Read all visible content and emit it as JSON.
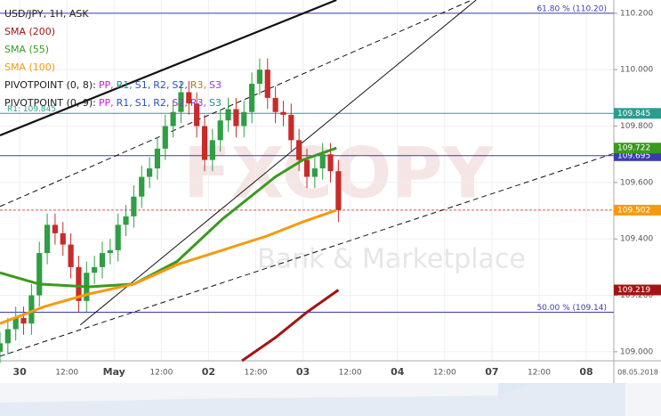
{
  "chart_data": {
    "type": "candlestick",
    "title": "USD/JPY, 1H, ASK",
    "watermark": [
      "FXCOPY",
      "Bank & Marketplace"
    ],
    "date_label": "08.05.2018",
    "xlim": [
      0,
      156
    ],
    "xticks": [
      {
        "value": 5,
        "label": "30"
      },
      {
        "value": 17,
        "label": "12:00"
      },
      {
        "value": 29,
        "label": "May"
      },
      {
        "value": 41,
        "label": "12:00"
      },
      {
        "value": 53,
        "label": "02"
      },
      {
        "value": 65,
        "label": "12:00"
      },
      {
        "value": 77,
        "label": "03"
      },
      {
        "value": 89,
        "label": "12:00"
      },
      {
        "value": 101,
        "label": "04"
      },
      {
        "value": 113,
        "label": "12:00"
      },
      {
        "value": 125,
        "label": "07"
      },
      {
        "value": 137,
        "label": "12:00"
      },
      {
        "value": 149,
        "label": "08"
      }
    ],
    "ylim": [
      108.968,
      110.247
    ],
    "yticks": [
      {
        "value": 109.0,
        "label": "109.000"
      },
      {
        "value": 109.2,
        "label": "109.200"
      },
      {
        "value": 109.4,
        "label": "109.400"
      },
      {
        "value": 109.6,
        "label": "109.600"
      },
      {
        "value": 109.8,
        "label": "109.800"
      },
      {
        "value": 110.0,
        "label": "110.000"
      },
      {
        "value": 110.2,
        "label": "110.200"
      }
    ],
    "up_color": "#2f9e44",
    "down_color": "#c92a2a",
    "x": [
      0,
      2,
      4,
      6,
      8,
      10,
      12,
      14,
      16,
      18,
      20,
      22,
      24,
      26,
      28,
      30,
      32,
      34,
      36,
      38,
      40,
      42,
      44,
      46,
      48,
      50,
      52,
      54,
      56,
      58,
      60,
      62,
      64,
      66,
      68,
      70,
      72,
      74,
      76,
      78,
      80,
      82,
      84,
      86
    ],
    "open": [
      109.0,
      109.03,
      109.08,
      109.12,
      109.1,
      109.2,
      109.35,
      109.45,
      109.42,
      109.38,
      109.3,
      109.18,
      109.28,
      109.3,
      109.35,
      109.36,
      109.45,
      109.48,
      109.55,
      109.62,
      109.65,
      109.72,
      109.8,
      109.85,
      109.92,
      109.88,
      109.8,
      109.68,
      109.75,
      109.82,
      109.86,
      109.8,
      109.85,
      109.95,
      110.0,
      109.9,
      109.85,
      109.84,
      109.75,
      109.68,
      109.62,
      109.65,
      109.7,
      109.64
    ],
    "high": [
      109.07,
      109.12,
      109.16,
      109.16,
      109.24,
      109.39,
      109.49,
      109.49,
      109.46,
      109.42,
      109.34,
      109.32,
      109.34,
      109.39,
      109.4,
      109.49,
      109.52,
      109.59,
      109.66,
      109.69,
      109.76,
      109.84,
      109.89,
      109.96,
      109.96,
      109.92,
      109.84,
      109.79,
      109.86,
      109.9,
      109.9,
      109.89,
      109.99,
      110.04,
      110.04,
      109.94,
      109.89,
      109.88,
      109.79,
      109.72,
      109.69,
      109.74,
      109.74,
      109.68
    ],
    "low": [
      108.96,
      108.99,
      109.04,
      109.06,
      109.06,
      109.16,
      109.31,
      109.38,
      109.34,
      109.26,
      109.14,
      109.14,
      109.24,
      109.26,
      109.31,
      109.32,
      109.41,
      109.44,
      109.51,
      109.58,
      109.61,
      109.68,
      109.76,
      109.81,
      109.84,
      109.76,
      109.64,
      109.64,
      109.71,
      109.78,
      109.76,
      109.76,
      109.81,
      109.91,
      109.86,
      109.81,
      109.8,
      109.71,
      109.64,
      109.58,
      109.58,
      109.61,
      109.6,
      109.46
    ],
    "close": [
      109.03,
      109.08,
      109.12,
      109.1,
      109.2,
      109.35,
      109.45,
      109.42,
      109.38,
      109.3,
      109.18,
      109.28,
      109.3,
      109.35,
      109.36,
      109.45,
      109.48,
      109.55,
      109.62,
      109.65,
      109.72,
      109.8,
      109.85,
      109.92,
      109.88,
      109.8,
      109.68,
      109.75,
      109.82,
      109.86,
      109.8,
      109.85,
      109.95,
      110.0,
      109.9,
      109.85,
      109.84,
      109.75,
      109.68,
      109.62,
      109.65,
      109.7,
      109.64,
      109.502
    ],
    "series": [
      {
        "name": "SMA (200)",
        "color": "#a31515",
        "x": [
          61.5,
          70,
          78,
          86
        ],
        "values": [
          108.968,
          109.05,
          109.14,
          109.219
        ]
      },
      {
        "name": "SMA (55)",
        "color": "#3a9a1e",
        "x": [
          0,
          10,
          22.6,
          34,
          45,
          56.5,
          70,
          77,
          85.5
        ],
        "values": [
          109.28,
          109.24,
          109.23,
          109.24,
          109.32,
          109.47,
          109.62,
          109.68,
          109.722
        ]
      },
      {
        "name": "SMA (100)",
        "color": "#f59a0f",
        "x": [
          0,
          11.3,
          22.6,
          34,
          45.2,
          56.5,
          67.8,
          76.9,
          85.5
        ],
        "values": [
          109.1,
          109.16,
          109.205,
          109.24,
          109.31,
          109.36,
          109.41,
          109.46,
          109.502
        ]
      }
    ],
    "pivots": [
      {
        "label": "PIVOTPOINT (0, 8):",
        "items": [
          {
            "text": "PP,",
            "color": "#c026d3"
          },
          {
            "text": "R1,",
            "color": "#0f9488"
          },
          {
            "text": "S1,",
            "color": "#2b50c8"
          },
          {
            "text": "R2,",
            "color": "#2b50c8"
          },
          {
            "text": "S2,",
            "color": "#2b50c8"
          },
          {
            "text": "R3,",
            "color": "#b7791f"
          },
          {
            "text": "S3",
            "color": "#9333ea"
          }
        ]
      },
      {
        "label": "PIVOTPOINT (0, 9):",
        "items": [
          {
            "text": "PP,",
            "color": "#c026d3"
          },
          {
            "text": "R1,",
            "color": "#2b50c8"
          },
          {
            "text": "S1,",
            "color": "#2b50c8"
          },
          {
            "text": "R2,",
            "color": "#2b50c8"
          },
          {
            "text": "S2,",
            "color": "#9333ea"
          },
          {
            "text": "R3,",
            "color": "#9333ea"
          },
          {
            "text": "S3",
            "color": "#0f9488"
          }
        ]
      }
    ],
    "levels": [
      {
        "value": 110.2,
        "label": "61.80 % (110.20)",
        "color": "#3b3bb0"
      },
      {
        "value": 109.845,
        "label": "R1: 109.845",
        "color": "#2a9d8f",
        "box": true
      },
      {
        "value": 109.695,
        "color": "#3b3bb0",
        "box": true
      },
      {
        "value": 109.502,
        "color": "#d9534f",
        "dashed": true
      },
      {
        "value": 109.14,
        "label": "50.00 % (109.14)",
        "color": "#3b3bb0"
      }
    ],
    "trendlines": [
      {
        "x": [
          0,
          85.5
        ],
        "values": [
          109.767,
          110.247
        ],
        "width": 2.2,
        "dashed": false
      },
      {
        "x": [
          0,
          119.9
        ],
        "values": [
          109.515,
          110.247
        ],
        "width": 1,
        "dashed": true
      },
      {
        "x": [
          20.4,
          121
        ],
        "values": [
          109.095,
          110.247
        ],
        "width": 1,
        "dashed": false
      },
      {
        "x": [
          0,
          156
        ],
        "values": [
          108.984,
          109.703
        ],
        "width": 1,
        "dashed": true
      }
    ]
  }
}
